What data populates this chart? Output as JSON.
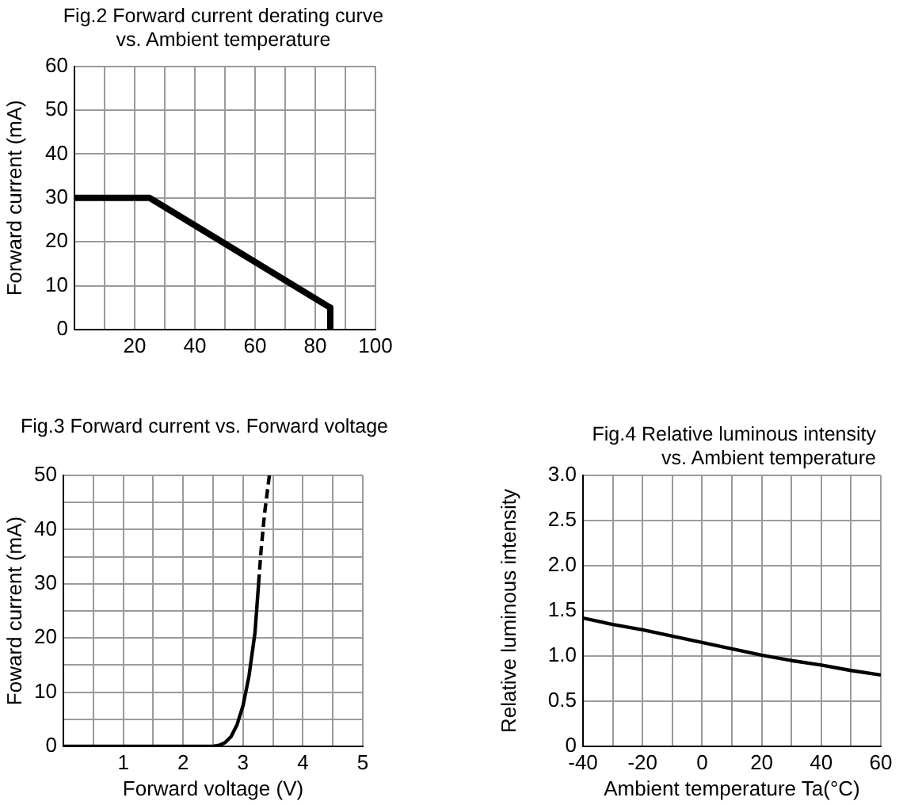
{
  "chart_data": [
    {
      "type": "line",
      "title": "Fig.2 Forward current derating curve vs. Ambient temperature",
      "ylabel": "Forward current (mA)",
      "series": [
        {
          "color": "#000000",
          "x": [
            0,
            25,
            85,
            85
          ],
          "values": [
            30,
            30,
            5,
            0
          ]
        }
      ],
      "xlim": [
        0,
        100
      ],
      "xticks": [
        {
          "value": 0,
          "label": null
        },
        {
          "value": 10,
          "label": null
        },
        20,
        {
          "value": 30,
          "label": null
        },
        40,
        {
          "value": 50,
          "label": null
        },
        60,
        {
          "value": 70,
          "label": null
        },
        80,
        {
          "value": 90,
          "label": null
        },
        100
      ],
      "ylim": [
        0,
        60
      ],
      "yticks": [
        0,
        10,
        20,
        30,
        40,
        50,
        60
      ],
      "grid": true
    },
    {
      "type": "line",
      "title": "Fig.3 Forward current vs. Forward voltage",
      "xlabel": "Forward voltage (V)",
      "ylabel": "Foward current (mA)",
      "series": [
        {
          "color": "#000000",
          "x": [
            0,
            2.5,
            2.6,
            2.7,
            2.8,
            2.9,
            3.0,
            3.1,
            3.2,
            3.26
          ],
          "values": [
            0,
            0,
            0.2,
            0.7,
            1.8,
            4,
            7.5,
            13,
            21,
            30
          ]
        },
        {
          "color": "#000000",
          "line_style": "dashed",
          "x": [
            3.26,
            3.3,
            3.36,
            3.44
          ],
          "values": [
            30,
            36,
            43,
            50
          ]
        }
      ],
      "xlim": [
        0,
        5
      ],
      "xticks": [
        {
          "value": 0,
          "label": null
        },
        {
          "value": 0.5,
          "label": null
        },
        1,
        {
          "value": 1.5,
          "label": null
        },
        2,
        {
          "value": 2.5,
          "label": null
        },
        3,
        {
          "value": 3.5,
          "label": null
        },
        4,
        {
          "value": 4.5,
          "label": null
        },
        5
      ],
      "ylim": [
        0,
        50
      ],
      "yticks": [
        0,
        {
          "value": 5,
          "label": null
        },
        10,
        {
          "value": 15,
          "label": null
        },
        20,
        {
          "value": 25,
          "label": null
        },
        30,
        {
          "value": 35,
          "label": null
        },
        40,
        {
          "value": 45,
          "label": null
        },
        50
      ],
      "grid": true
    },
    {
      "type": "line",
      "title": "Fig.4 Relative luminous intensity vs. Ambient temperature",
      "xlabel": "Ambient temperature Ta(°C)",
      "ylabel": "Relative luminous intensity",
      "series": [
        {
          "color": "#000000",
          "x": [
            -40,
            -30,
            -20,
            -10,
            0,
            10,
            20,
            30,
            40,
            50,
            60
          ],
          "values": [
            1.42,
            1.35,
            1.29,
            1.22,
            1.15,
            1.08,
            1.01,
            0.95,
            0.9,
            0.84,
            0.79
          ]
        }
      ],
      "xlim": [
        -40,
        60
      ],
      "xticks": [
        -40,
        {
          "value": -30,
          "label": null
        },
        -20,
        {
          "value": -10,
          "label": null
        },
        0,
        {
          "value": 10,
          "label": null
        },
        20,
        {
          "value": 30,
          "label": null
        },
        40,
        {
          "value": 50,
          "label": null
        },
        60
      ],
      "ylim": [
        0,
        3
      ],
      "yticks": [
        0,
        0.5,
        {
          "value": 1,
          "label": "1.0"
        },
        1.5,
        {
          "value": 2,
          "label": "2.0"
        },
        2.5,
        {
          "value": 3,
          "label": "3.0"
        }
      ],
      "grid": true
    }
  ]
}
